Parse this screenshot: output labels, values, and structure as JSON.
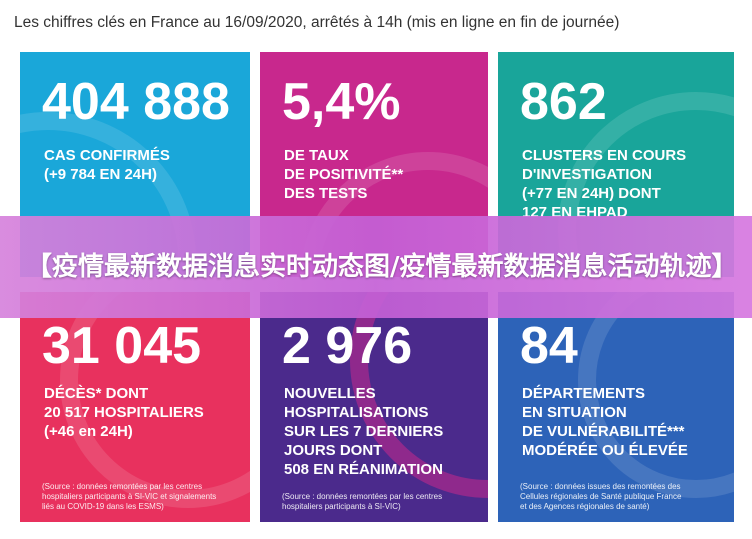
{
  "header": {
    "title": "Les chiffres clés en France au 16/09/2020, arrêtés à 14h (mis en ligne en fin de journée)"
  },
  "banner": {
    "text": "【疫情最新数据消息实时动态图/疫情最新数据消息活动轨迹】"
  },
  "cards": [
    {
      "value": "404 888",
      "label": "CAS CONFIRMÉS\n(+9 784 EN 24H)",
      "source": ""
    },
    {
      "value": "5,4%",
      "label": "DE TAUX\nDE POSITIVITÉ**\nDES TESTS",
      "source": ""
    },
    {
      "value": "862",
      "label": "CLUSTERS EN COURS\nD'INVESTIGATION\n(+77 EN 24H) DONT\n127 EN EHPAD",
      "source": ""
    },
    {
      "value": "31 045",
      "label": "DÉCÈS* DONT\n20 517 HOSPITALIERS\n(+46 en 24H)",
      "source": "(Source : données remontées par les centres\nhospitaliers participants à SI-VIC et signalements\nliés au COVID-19 dans les ESMS)"
    },
    {
      "value": "2 976",
      "label": "NOUVELLES\nHOSPITALISATIONS\nSUR LES 7 DERNIERS\nJOURS DONT\n508 EN RÉANIMATION",
      "source": "(Source : données remontées par les centres\nhospitaliers participants à SI-VIC)"
    },
    {
      "value": "84",
      "label": "DÉPARTEMENTS\nEN SITUATION\nDE VULNÉRABILITÉ***\nMODÉRÉE OU ÉLEVÉE",
      "source": "(Source : données issues des remontées des\nCellules régionales de Santé publique France\net des Agences régionales de santé)"
    }
  ],
  "colors": {
    "card1": "#1aa7d9",
    "card2": "#c8288d",
    "card3": "#19a59a",
    "card4": "#e8315e",
    "card5": "#4b2a8c",
    "card6": "#2d63b8",
    "banner": "#c660d6"
  }
}
